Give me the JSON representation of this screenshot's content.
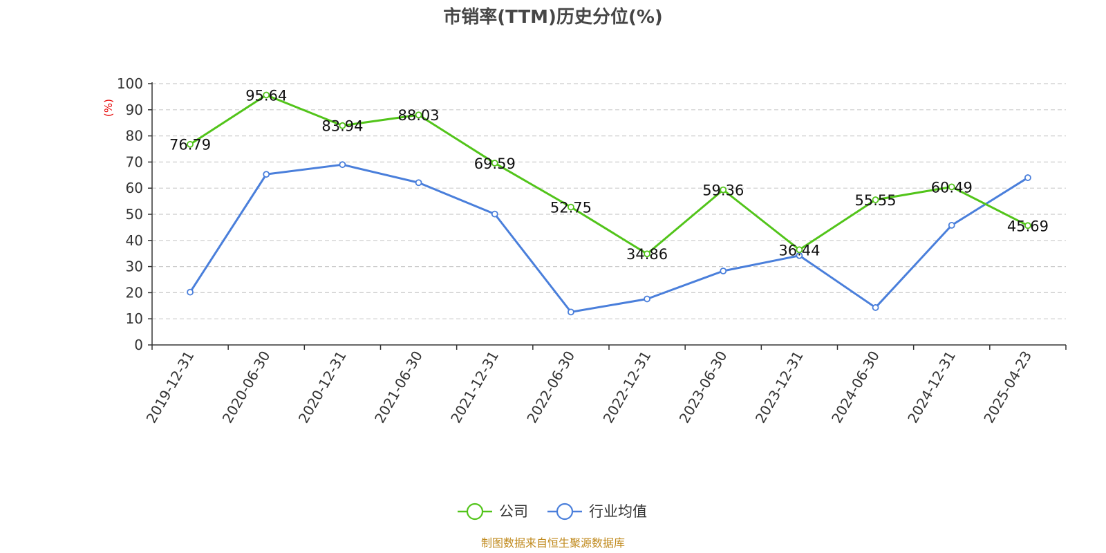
{
  "chart_data": {
    "type": "line",
    "title": "市销率(TTM)历史分位(%)",
    "ylabel": "(%)",
    "ylim": [
      0,
      100
    ],
    "yticks": [
      0,
      10,
      20,
      30,
      40,
      50,
      60,
      70,
      80,
      90,
      100
    ],
    "grid": true,
    "legend_position": "bottom-center",
    "categories": [
      "2019-12-31",
      "2020-06-30",
      "2020-12-31",
      "2021-06-30",
      "2021-12-31",
      "2022-06-30",
      "2022-12-31",
      "2023-06-30",
      "2023-12-31",
      "2024-06-30",
      "2024-12-31",
      "2025-04-23"
    ],
    "series": [
      {
        "name": "公司",
        "color": "#52c41a",
        "values": [
          76.79,
          95.64,
          83.94,
          88.03,
          69.59,
          52.75,
          34.86,
          59.36,
          36.44,
          55.55,
          60.49,
          45.69
        ],
        "labels": [
          "76.79",
          "95.64",
          "83.94",
          "88.03",
          "69.59",
          "52.75",
          "34.86",
          "59.36",
          "36.44",
          "55.55",
          "60.49",
          "45.69"
        ]
      },
      {
        "name": "行业均值",
        "color": "#4a7fdb",
        "values": [
          20.2,
          65.3,
          69.0,
          62.1,
          50.1,
          12.6,
          17.6,
          28.3,
          34.2,
          14.3,
          45.8,
          64.0
        ]
      }
    ],
    "source": "制图数据来自恒生聚源数据库"
  }
}
